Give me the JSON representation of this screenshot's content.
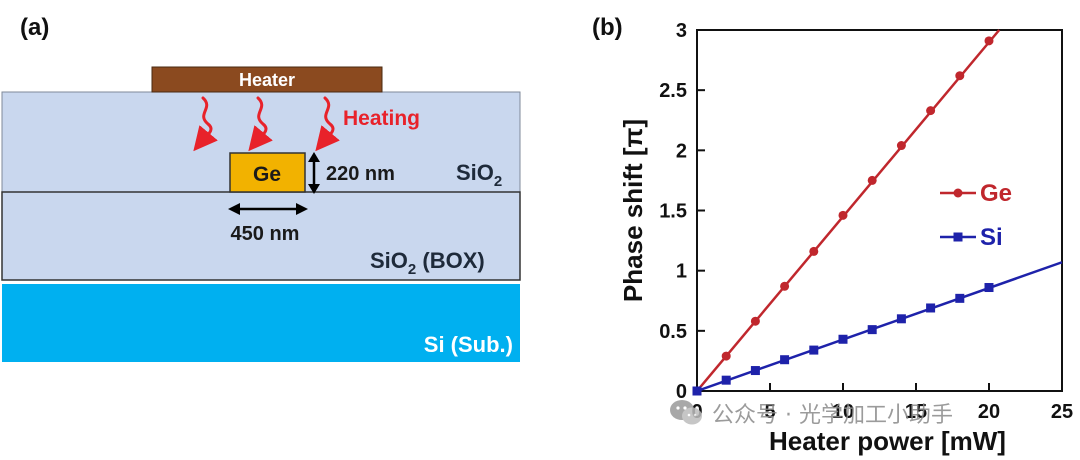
{
  "panels": {
    "a_label": "(a)",
    "b_label": "(b)"
  },
  "schematic": {
    "heater_label": "Heater",
    "heating_label": "Heating",
    "ge_label": "Ge",
    "height_label": "220 nm",
    "width_label": "450 nm",
    "sio2_clad_label": "SiO",
    "sio2_clad_sub": "2",
    "box_label_prefix": "SiO",
    "box_label_sub": "2",
    "box_label_suffix": " (BOX)",
    "substrate_label": "Si (Sub.)",
    "colors": {
      "heater": "#8B4A1F",
      "cladding": "#C9D7EE",
      "box": "#C9D7EE",
      "substrate": "#00B0F0",
      "ge_core": "#F2B200",
      "heating_arrow": "#E8222A",
      "label_dark": "#1E2A3A",
      "label_light": "#FFFFFF"
    }
  },
  "chart_data": {
    "type": "line",
    "title": "",
    "xlabel": "Heater power [mW]",
    "ylabel": "Phase shift [π]",
    "xlim": [
      0,
      25
    ],
    "ylim": [
      0,
      3
    ],
    "xticks": [
      0,
      5,
      10,
      15,
      20,
      25
    ],
    "yticks": [
      0,
      0.5,
      1,
      1.5,
      2,
      2.5,
      3
    ],
    "ytick_labels": [
      "0",
      "0.5",
      "1",
      "1.5",
      "2",
      "2.5",
      "3"
    ],
    "legend_position": "center-right",
    "series": [
      {
        "name": "Ge",
        "color": "#C0272D",
        "marker": "circle",
        "x": [
          0,
          2,
          4,
          6,
          8,
          10,
          12,
          14,
          16,
          18,
          20
        ],
        "y": [
          0,
          0.29,
          0.58,
          0.87,
          1.16,
          1.46,
          1.75,
          2.04,
          2.33,
          2.62,
          2.91
        ],
        "fit": {
          "x": [
            0,
            20.7
          ],
          "y": [
            0,
            3.0
          ]
        }
      },
      {
        "name": "Si",
        "color": "#1E22AA",
        "marker": "square",
        "x": [
          0,
          2,
          4,
          6,
          8,
          10,
          12,
          14,
          16,
          18,
          20
        ],
        "y": [
          0,
          0.09,
          0.17,
          0.26,
          0.34,
          0.43,
          0.51,
          0.6,
          0.69,
          0.77,
          0.86
        ],
        "fit": {
          "x": [
            0,
            25
          ],
          "y": [
            0,
            1.07
          ]
        }
      }
    ]
  },
  "watermark": {
    "text": "公众号 · 光学加工小助手"
  }
}
